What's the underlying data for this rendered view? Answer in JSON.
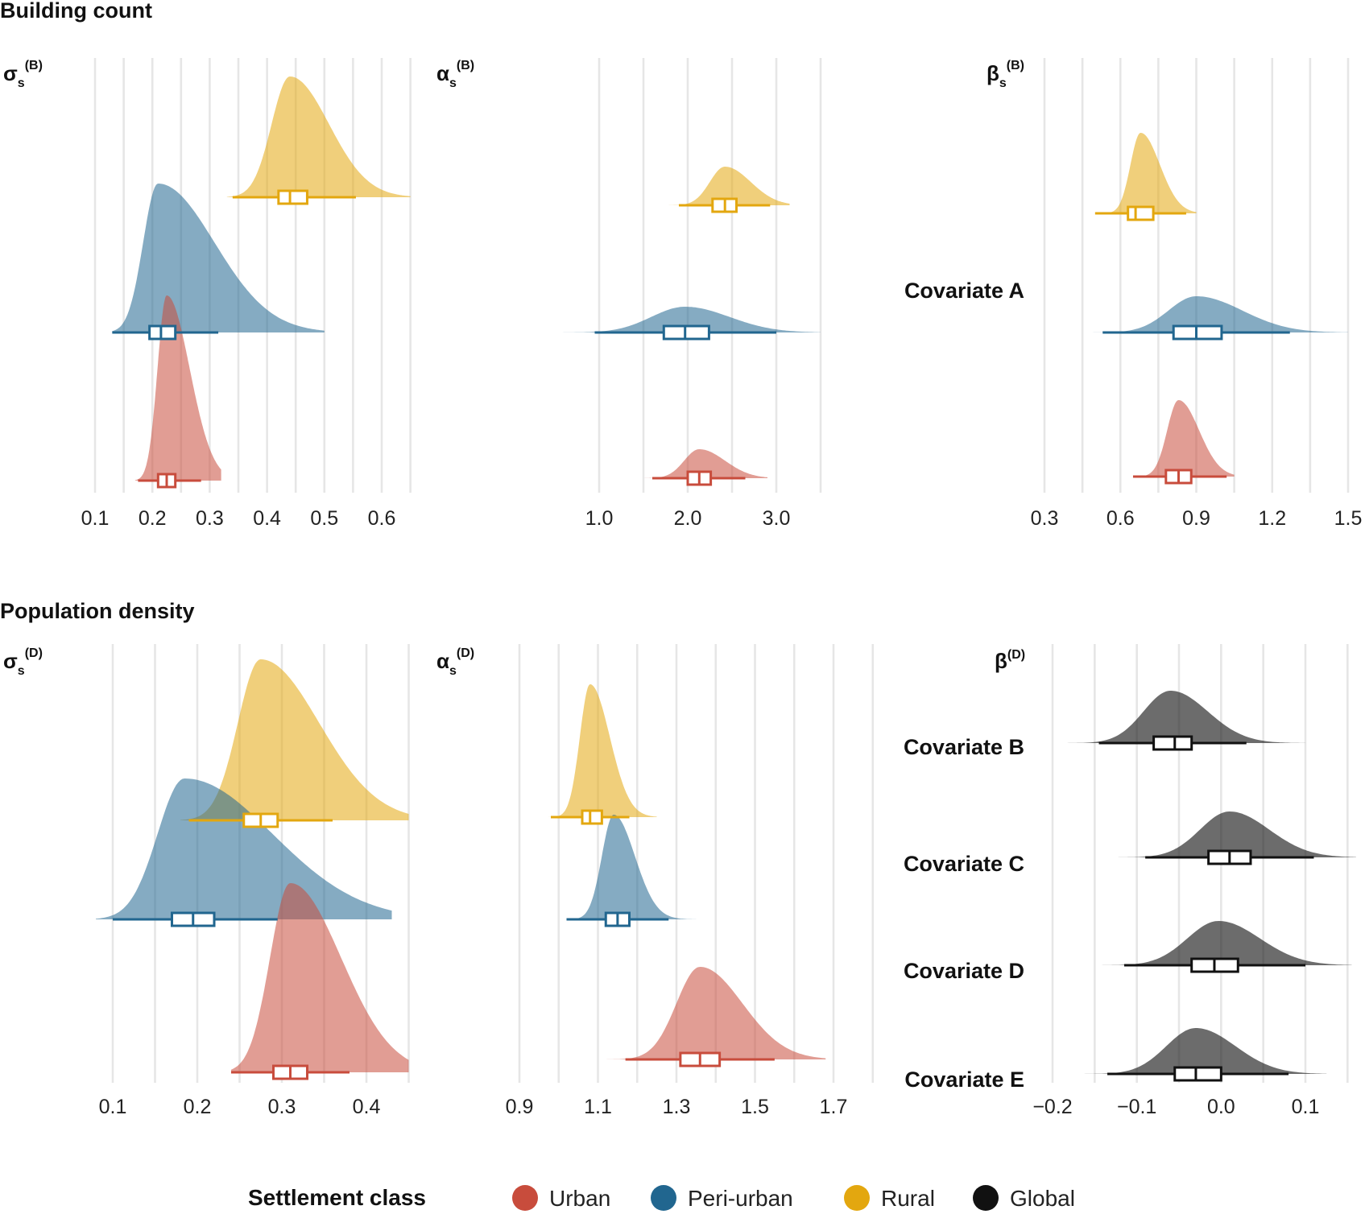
{
  "colors": {
    "urban": "#c84c3c",
    "periurban": "#21668f",
    "rural": "#e3a70f",
    "global": "#111111"
  },
  "legend": {
    "title": "Settlement class",
    "items": [
      {
        "label": "Urban",
        "color": "#c84c3c"
      },
      {
        "label": "Peri-urban",
        "color": "#21668f"
      },
      {
        "label": "Rural",
        "color": "#e3a70f"
      },
      {
        "label": "Global",
        "color": "#111111"
      }
    ]
  },
  "sections": {
    "building": "Building count",
    "population": "Population density"
  },
  "chart_data": [
    {
      "type": "ridgeline",
      "title": "σs(B)",
      "title_main": "σ",
      "title_sub": "s",
      "title_sup": "(B)",
      "xlim": [
        0.1,
        0.65
      ],
      "xticks": [
        0.1,
        0.2,
        0.3,
        0.4,
        0.5,
        0.6
      ],
      "tick_labels": [
        "0.1",
        "0.2",
        "0.3",
        "0.4",
        "0.5",
        "0.6"
      ],
      "rows": [
        {
          "class": "rural",
          "density": {
            "mode": 0.44,
            "sd": 0.032,
            "skew": 0.006,
            "min": 0.33,
            "max": 0.65
          },
          "interval": [
            0.34,
            0.555
          ],
          "box": [
            0.42,
            0.47
          ],
          "median": 0.44
        },
        {
          "class": "periurban",
          "density": {
            "mode": 0.21,
            "sd": 0.026,
            "skew": 0.012,
            "min": 0.13,
            "max": 0.5
          },
          "interval": [
            0.13,
            0.315
          ],
          "box": [
            0.195,
            0.24
          ],
          "median": 0.215
        },
        {
          "class": "urban",
          "density": {
            "mode": 0.225,
            "sd": 0.016,
            "skew": 0.004,
            "min": 0.17,
            "max": 0.32
          },
          "interval": [
            0.175,
            0.285
          ],
          "box": [
            0.21,
            0.24
          ],
          "median": 0.225
        }
      ]
    },
    {
      "type": "ridgeline",
      "title": "αs(B)",
      "title_main": "α",
      "title_sub": "s",
      "title_sup": "(B)",
      "xlim": [
        0.5,
        3.5
      ],
      "xticks": [
        1.0,
        2.0,
        3.0
      ],
      "tick_labels": [
        "1.0",
        "2.0",
        "3.0"
      ],
      "rows": [
        {
          "class": "rural",
          "density": {
            "mode": 2.42,
            "sd": 0.17,
            "skew": 0.02,
            "min": 1.7,
            "max": 3.15
          },
          "interval": [
            1.9,
            2.93
          ],
          "box": [
            2.28,
            2.55
          ],
          "median": 2.42
        },
        {
          "class": "periurban",
          "density": {
            "mode": 1.97,
            "sd": 0.38,
            "skew": 0.02,
            "min": 0.5,
            "max": 3.5
          },
          "interval": [
            0.95,
            3.0
          ],
          "box": [
            1.73,
            2.24
          ],
          "median": 1.97
        },
        {
          "class": "urban",
          "density": {
            "mode": 2.13,
            "sd": 0.17,
            "skew": 0.02,
            "min": 1.4,
            "max": 2.9
          },
          "interval": [
            1.6,
            2.65
          ],
          "box": [
            2.0,
            2.26
          ],
          "median": 2.13
        }
      ]
    },
    {
      "type": "ridgeline",
      "title": "βs(B)",
      "title_main": "β",
      "title_sub": "s",
      "title_sup": "(B)",
      "xlim": [
        0.3,
        1.5
      ],
      "xticks": [
        0.3,
        0.6,
        0.9,
        1.2,
        1.5
      ],
      "tick_labels": [
        "0.3",
        "0.6",
        "0.9",
        "1.2",
        "1.5"
      ],
      "row_labels": [
        "",
        "Covariate A",
        ""
      ],
      "rows": [
        {
          "class": "rural",
          "density": {
            "mode": 0.68,
            "sd": 0.04,
            "skew": 0.006,
            "min": 0.5,
            "max": 0.9
          },
          "interval": [
            0.5,
            0.86
          ],
          "box": [
            0.63,
            0.73
          ],
          "median": 0.66
        },
        {
          "class": "periurban",
          "density": {
            "mode": 0.9,
            "sd": 0.11,
            "skew": 0.012,
            "min": 0.3,
            "max": 1.5
          },
          "interval": [
            0.53,
            1.27
          ],
          "box": [
            0.81,
            1.0
          ],
          "median": 0.9
        },
        {
          "class": "urban",
          "density": {
            "mode": 0.83,
            "sd": 0.045,
            "skew": 0.006,
            "min": 0.6,
            "max": 1.05
          },
          "interval": [
            0.65,
            1.02
          ],
          "box": [
            0.78,
            0.88
          ],
          "median": 0.83
        }
      ]
    },
    {
      "type": "ridgeline",
      "title": "σs(D)",
      "title_main": "σ",
      "title_sub": "s",
      "title_sup": "(D)",
      "xlim": [
        0.1,
        0.45
      ],
      "xticks": [
        0.1,
        0.2,
        0.3,
        0.4
      ],
      "tick_labels": [
        "0.1",
        "0.2",
        "0.3",
        "0.4"
      ],
      "rows": [
        {
          "class": "rural",
          "density": {
            "mode": 0.275,
            "sd": 0.027,
            "skew": 0.007,
            "min": 0.18,
            "max": 0.45
          },
          "interval": [
            0.19,
            0.36
          ],
          "box": [
            0.255,
            0.295
          ],
          "median": 0.275
        },
        {
          "class": "periurban",
          "density": {
            "mode": 0.185,
            "sd": 0.032,
            "skew": 0.012,
            "min": 0.08,
            "max": 0.43
          },
          "interval": [
            0.1,
            0.295
          ],
          "box": [
            0.17,
            0.22
          ],
          "median": 0.195
        },
        {
          "class": "urban",
          "density": {
            "mode": 0.31,
            "sd": 0.024,
            "skew": 0.006,
            "min": 0.24,
            "max": 0.45
          },
          "interval": [
            0.24,
            0.38
          ],
          "box": [
            0.29,
            0.33
          ],
          "median": 0.31
        }
      ]
    },
    {
      "type": "ridgeline",
      "title": "αs(D)",
      "title_main": "α",
      "title_sub": "s",
      "title_sup": "(D)",
      "xlim": [
        0.9,
        1.7
      ],
      "xticks": [
        0.9,
        1.1,
        1.3,
        1.5,
        1.7
      ],
      "tick_labels": [
        "0.9",
        "1.1",
        "1.3",
        "1.5",
        "1.7"
      ],
      "rows": [
        {
          "class": "rural",
          "density": {
            "mode": 1.08,
            "sd": 0.026,
            "skew": 0.004,
            "min": 0.93,
            "max": 1.25
          },
          "interval": [
            0.98,
            1.18
          ],
          "box": [
            1.06,
            1.11
          ],
          "median": 1.08
        },
        {
          "class": "periurban",
          "density": {
            "mode": 1.14,
            "sd": 0.03,
            "skew": 0.004,
            "min": 0.9,
            "max": 1.35
          },
          "interval": [
            1.02,
            1.28
          ],
          "box": [
            1.12,
            1.18
          ],
          "median": 1.15
        },
        {
          "class": "urban",
          "density": {
            "mode": 1.36,
            "sd": 0.06,
            "skew": 0.008,
            "min": 1.1,
            "max": 1.68
          },
          "interval": [
            1.17,
            1.55
          ],
          "box": [
            1.31,
            1.41
          ],
          "median": 1.36
        }
      ]
    },
    {
      "type": "ridgeline",
      "title": "β(D)",
      "title_main": "β",
      "title_sub": "",
      "title_sup": "(D)",
      "xlim": [
        -0.2,
        0.15
      ],
      "xticks": [
        -0.2,
        -0.1,
        0.0,
        0.1
      ],
      "tick_labels": [
        "−0.2",
        "−0.1",
        "0.0",
        "0.1"
      ],
      "row_labels": [
        "Covariate B",
        "Covariate C",
        "Covariate D",
        "Covariate E"
      ],
      "rows": [
        {
          "class": "global",
          "density": {
            "mode": -0.06,
            "sd": 0.032,
            "skew": 0.002,
            "min": -0.2,
            "max": 0.1
          },
          "interval": [
            -0.145,
            0.03
          ],
          "box": [
            -0.08,
            -0.035
          ],
          "median": -0.055
        },
        {
          "class": "global",
          "density": {
            "mode": 0.01,
            "sd": 0.035,
            "skew": 0.002,
            "min": -0.14,
            "max": 0.16
          },
          "interval": [
            -0.09,
            0.11
          ],
          "box": [
            -0.015,
            0.035
          ],
          "median": 0.01
        },
        {
          "class": "global",
          "density": {
            "mode": -0.003,
            "sd": 0.037,
            "skew": 0.002,
            "min": -0.16,
            "max": 0.155
          },
          "interval": [
            -0.115,
            0.1
          ],
          "box": [
            -0.035,
            0.02
          ],
          "median": -0.008
        },
        {
          "class": "global",
          "density": {
            "mode": -0.03,
            "sd": 0.035,
            "skew": 0.002,
            "min": -0.2,
            "max": 0.125
          },
          "interval": [
            -0.135,
            0.08
          ],
          "box": [
            -0.055,
            0.0
          ],
          "median": -0.03
        }
      ]
    }
  ]
}
